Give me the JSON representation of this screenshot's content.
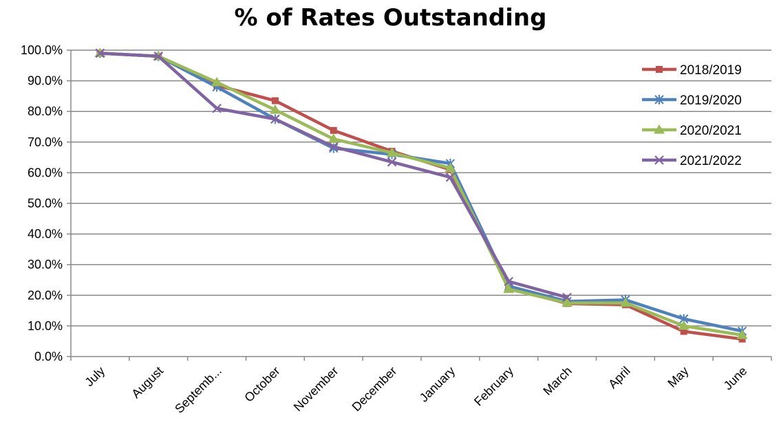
{
  "colors": {
    "grid": "#888888",
    "axis": "#888888",
    "background": "#ffffff"
  },
  "chart_data": {
    "type": "line",
    "title": "% of Rates Outstanding",
    "xlabel": "",
    "ylabel": "",
    "categories": [
      "July",
      "August",
      "Septemb...",
      "October",
      "November",
      "December",
      "January",
      "February",
      "March",
      "April",
      "May",
      "June"
    ],
    "ylim": [
      0,
      100
    ],
    "yticks": [
      "0.0%",
      "10.0%",
      "20.0%",
      "30.0%",
      "40.0%",
      "50.0%",
      "60.0%",
      "70.0%",
      "80.0%",
      "90.0%",
      "100.0%"
    ],
    "grid": true,
    "legend_position": "top-right",
    "series": [
      {
        "name": "2018/2019",
        "color": "#C0504D",
        "marker": "square-icon",
        "values": [
          99.0,
          98.0,
          88.5,
          83.5,
          73.8,
          67.0,
          61.0,
          22.5,
          17.3,
          16.9,
          8.2,
          5.7
        ]
      },
      {
        "name": "2019/2020",
        "color": "#4F81BD",
        "marker": "asterisk-icon",
        "values": [
          99.0,
          98.0,
          88.0,
          77.5,
          68.0,
          66.0,
          63.0,
          23.0,
          18.0,
          18.5,
          12.3,
          8.3
        ]
      },
      {
        "name": "2020/2021",
        "color": "#9BBB59",
        "marker": "triangle-icon",
        "values": [
          99.0,
          98.0,
          89.5,
          80.5,
          71.0,
          66.5,
          61.5,
          22.0,
          17.5,
          17.5,
          10.0,
          7.0
        ]
      },
      {
        "name": "2021/2022",
        "color": "#8064A2",
        "marker": "x-icon",
        "values": [
          99.0,
          98.0,
          81.0,
          77.5,
          68.5,
          63.5,
          58.5,
          24.5,
          19.3,
          null,
          null,
          null
        ]
      }
    ]
  }
}
